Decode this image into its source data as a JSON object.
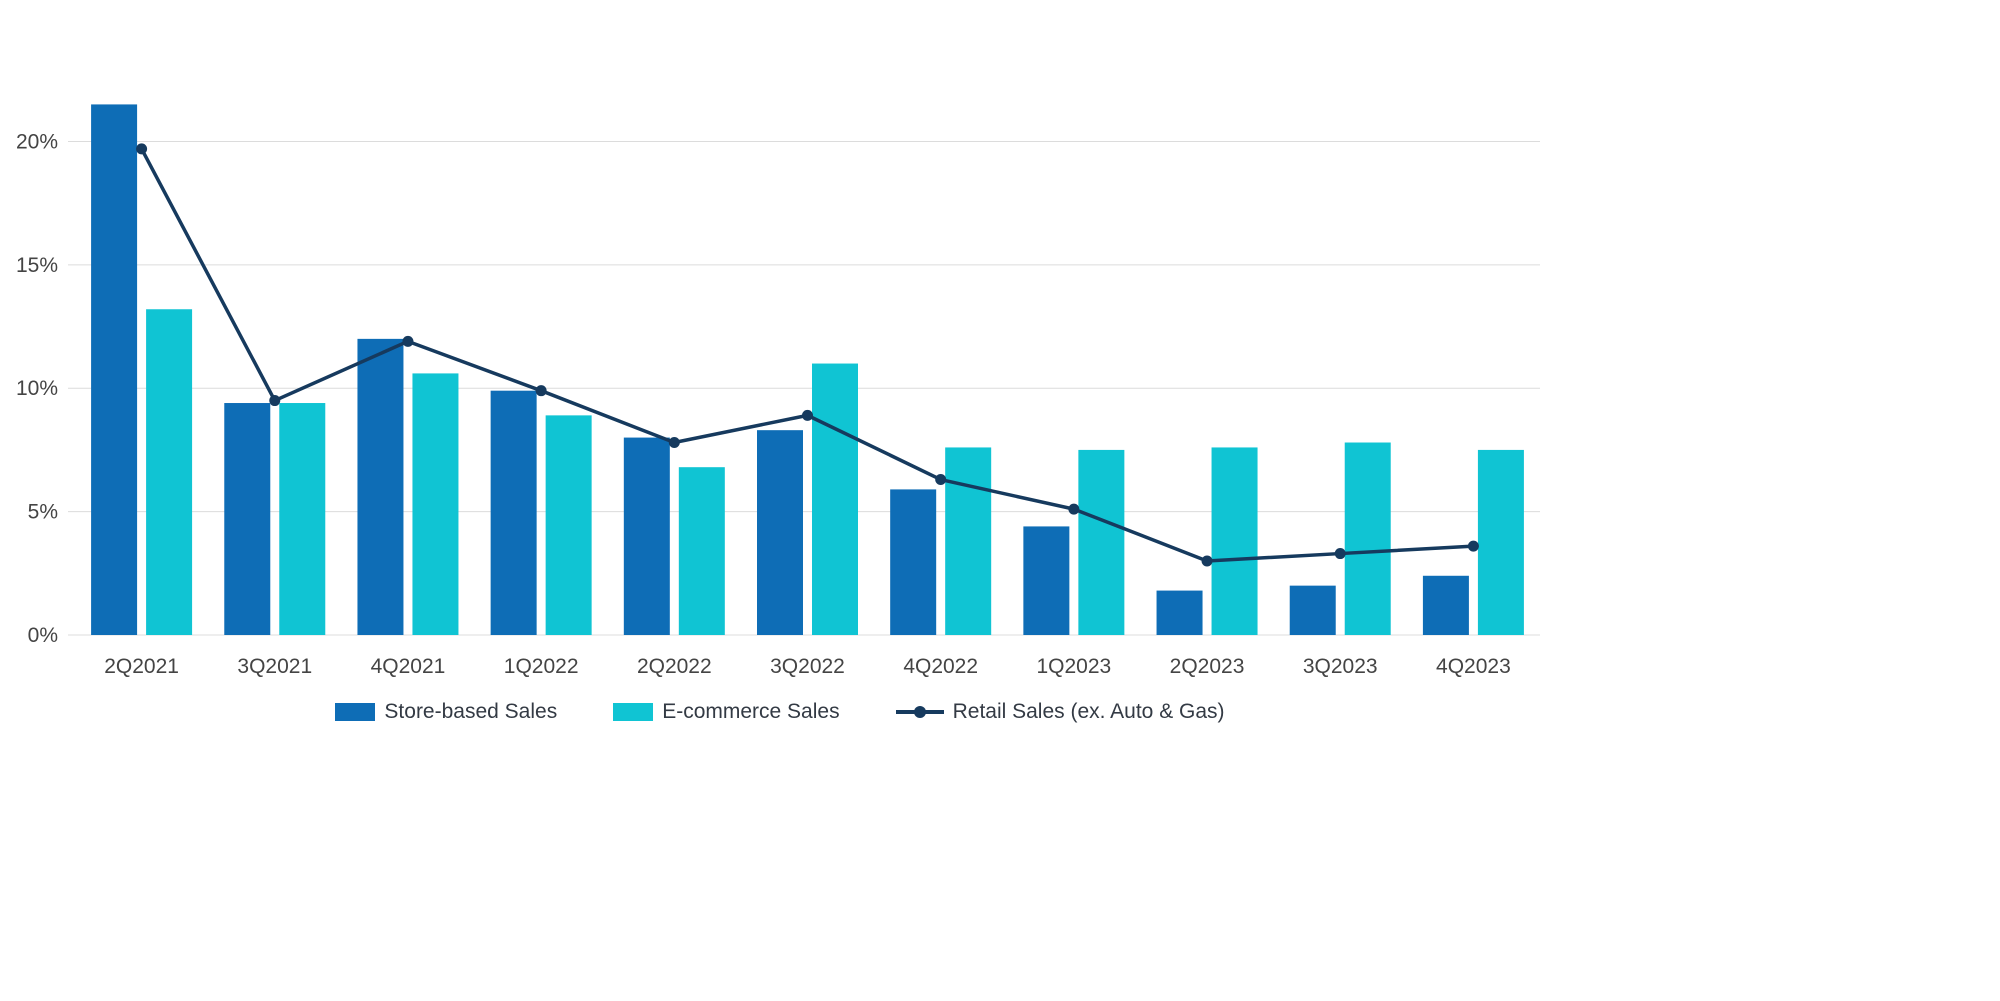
{
  "chart_data": {
    "type": "bar",
    "subtype": "grouped-bars-with-line",
    "title": "",
    "xlabel": "",
    "ylabel": "",
    "categories": [
      "2Q2021",
      "3Q2021",
      "4Q2021",
      "1Q2022",
      "2Q2022",
      "3Q2022",
      "4Q2022",
      "1Q2023",
      "2Q2023",
      "3Q2023",
      "4Q2023"
    ],
    "series": [
      {
        "name": "Store-based Sales",
        "type": "bar",
        "color": "#0e6db6",
        "values": [
          21.5,
          9.4,
          12.0,
          9.9,
          8.0,
          8.3,
          5.9,
          4.4,
          1.8,
          2.0,
          2.4
        ]
      },
      {
        "name": "E-commerce Sales",
        "type": "bar",
        "color": "#10c4d3",
        "values": [
          13.2,
          9.4,
          10.6,
          8.9,
          6.8,
          11.0,
          7.6,
          7.5,
          7.6,
          7.8,
          7.5
        ]
      },
      {
        "name": "Retail Sales (ex. Auto & Gas)",
        "type": "line",
        "color": "#163a5e",
        "values": [
          19.7,
          9.5,
          11.9,
          9.9,
          7.8,
          8.9,
          6.3,
          5.1,
          3.0,
          3.3,
          3.6
        ]
      }
    ],
    "ylim": [
      0,
      23.3
    ],
    "yticks": [
      0,
      5,
      10,
      15,
      20
    ],
    "ytick_suffix": "%",
    "grid": true,
    "grid_color": "#dcdcdc",
    "axis_text_color": "#444444",
    "legend_position": "bottom"
  }
}
